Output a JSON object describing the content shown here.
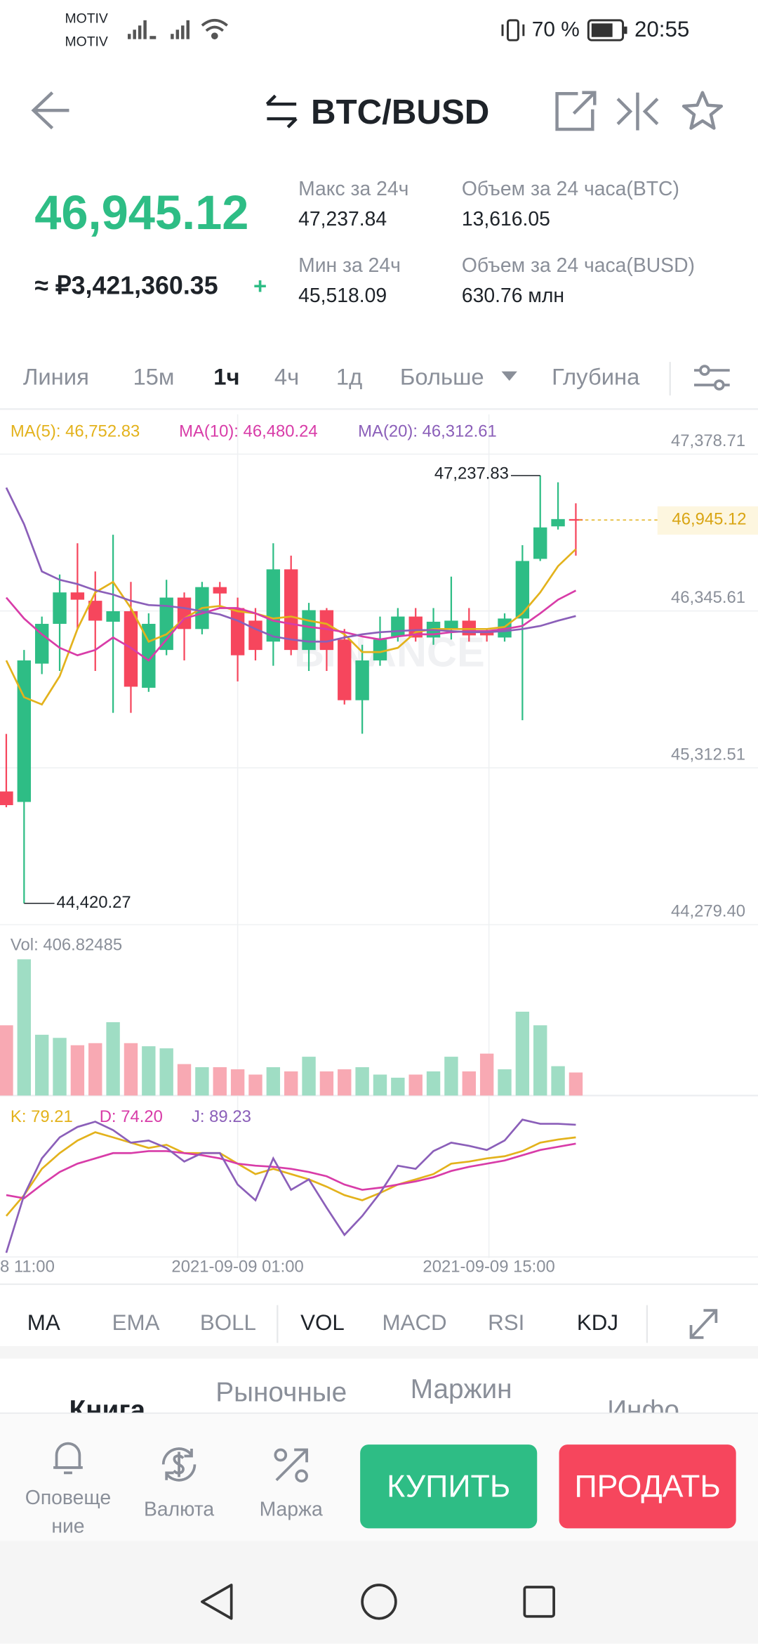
{
  "status_bar": {
    "carriers": [
      "MOTIV",
      "MOTIV"
    ],
    "battery": "70 %",
    "time": "20:55"
  },
  "header": {
    "pair": "BTC/BUSD"
  },
  "ticker": {
    "last_price": "46,945.12",
    "fiat_price": "≈ ₽3,421,360.35",
    "fiat_change": "+",
    "stats": [
      {
        "label": "Макс за 24ч",
        "value": "47,237.84"
      },
      {
        "label": "Объем за 24 часа(BTC)",
        "value": "13,616.05"
      },
      {
        "label": "Мин за 24ч",
        "value": "45,518.09"
      },
      {
        "label": "Объем за 24 часа(BUSD)",
        "value": "630.76 млн"
      }
    ]
  },
  "intervals": [
    "Линия",
    "15м",
    "1ч",
    "4ч",
    "1д",
    "Больше",
    "Глубина"
  ],
  "chart": {
    "type": "candlestick",
    "watermark": "BINANCE",
    "ylim": [
      44279.4,
      47378.71
    ],
    "yticks": [
      {
        "value": 47378.71,
        "label": "47,378.71"
      },
      {
        "value": 46345.61,
        "label": "46,345.61"
      },
      {
        "value": 45312.51,
        "label": "45,312.51"
      },
      {
        "value": 44279.4,
        "label": "44,279.40"
      }
    ],
    "x_labels": [
      "8 11:00",
      "2021-09-09 01:00",
      "2021-09-09 15:00"
    ],
    "high_label": "47,237.83",
    "low_label": "44,420.27",
    "last_label": "46,945.12",
    "up_color": "#2ebd85",
    "down_color": "#f6465d",
    "candles": {
      "open": [
        45157,
        45088,
        45999,
        46261,
        46468,
        46413,
        46275,
        46344,
        45840,
        46089,
        46434,
        46227,
        46503,
        46365,
        46282,
        46144,
        46620,
        46089,
        46351,
        46158,
        45758,
        46020,
        46178,
        46309,
        46171,
        46227,
        46282,
        46206,
        46171,
        46296,
        46689,
        46903,
        46951
      ],
      "high": [
        45536,
        46089,
        46309,
        46586,
        46792,
        46606,
        46848,
        46537,
        46330,
        46551,
        46468,
        46537,
        46537,
        46434,
        46365,
        46792,
        46710,
        46399,
        46365,
        46227,
        46123,
        46309,
        46365,
        46365,
        46365,
        46572,
        46365,
        46227,
        46330,
        46779,
        47237.83,
        47193,
        47055
      ],
      "low": [
        45053,
        44420.27,
        45930,
        45951,
        46227,
        45951,
        45675,
        45675,
        45813,
        46054,
        46020,
        46192,
        46365,
        45882,
        46020,
        45985,
        46054,
        45951,
        45951,
        45730,
        45537,
        45985,
        46144,
        46144,
        46123,
        46158,
        46144,
        46144,
        46144,
        45626,
        46675,
        46882,
        46710
      ],
      "close": [
        45067,
        46020,
        46261,
        46468,
        46420,
        46282,
        46344,
        45847,
        46261,
        46434,
        46227,
        46503,
        46461,
        46054,
        46089,
        46620,
        46089,
        46351,
        46089,
        45758,
        46020,
        46158,
        46309,
        46171,
        46275,
        46282,
        46185,
        46185,
        46296,
        46675,
        46896,
        46951,
        46945.12
      ]
    },
    "ma_series": [
      {
        "legend": "MA(5): 46,752.83",
        "color": "#e3b21c",
        "values": [
          46020,
          45778,
          45730,
          45916,
          46227,
          46468,
          46537,
          46365,
          46144,
          46192,
          46296,
          46365,
          46379,
          46344,
          46330,
          46296,
          46309,
          46282,
          46261,
          46192,
          46075,
          46075,
          46103,
          46206,
          46227,
          46227,
          46227,
          46227,
          46241,
          46330,
          46468,
          46641,
          46752.83
        ]
      },
      {
        "legend": "MA(10): 46,480.24",
        "color": "#d83ca8",
        "values": [
          46434,
          46296,
          46192,
          46103,
          46054,
          46089,
          46171,
          46103,
          46020,
          46158,
          46296,
          46330,
          46365,
          46365,
          46330,
          46282,
          46261,
          46241,
          46227,
          46206,
          46178,
          46158,
          46178,
          46192,
          46192,
          46206,
          46213,
          46213,
          46227,
          46247,
          46330,
          46420,
          46480.24
        ]
      },
      {
        "legend": "MA(20): 46,312.61",
        "color": "#8b5fb9",
        "values": [
          47158,
          46917,
          46606,
          46551,
          46523,
          46482,
          46454,
          46413,
          46385,
          46379,
          46365,
          46344,
          46323,
          46282,
          46227,
          46178,
          46158,
          46144,
          46144,
          46171,
          46192,
          46206,
          46213,
          46220,
          46220,
          46213,
          46206,
          46206,
          46213,
          46227,
          46247,
          46282,
          46312.61
        ]
      }
    ],
    "volume": {
      "legend": "Vol: 406.82485",
      "up_color": "#9fddc4",
      "down_color": "#f8a9b3",
      "values": [
        1240,
        2405,
        1073,
        1018,
        888,
        925,
        1295,
        925,
        870,
        833,
        555,
        500,
        500,
        463,
        370,
        500,
        426,
        685,
        426,
        463,
        500,
        370,
        315,
        370,
        426,
        685,
        426,
        740,
        463,
        1480,
        1240,
        518,
        406.82485
      ]
    },
    "kdj": [
      {
        "legend": "K: 79.21",
        "color": "#e3b21c",
        "values": [
          16.7,
          33.3,
          54.2,
          66.7,
          76.7,
          83.3,
          79.2,
          75.0,
          70.8,
          73.3,
          66.7,
          66.7,
          66.7,
          58.3,
          50.0,
          54.2,
          50.0,
          45.8,
          40.0,
          33.3,
          29.2,
          35.0,
          41.7,
          45.8,
          50.0,
          58.3,
          60.0,
          62.5,
          64.2,
          68.3,
          75.0,
          77.5,
          79.21
        ]
      },
      {
        "legend": "D: 74.20",
        "color": "#d83ca8",
        "values": [
          33.3,
          30.8,
          41.7,
          51.7,
          58.3,
          62.5,
          66.7,
          66.7,
          68.3,
          68.3,
          66.7,
          65.0,
          62.5,
          58.3,
          56.7,
          55.8,
          54.2,
          51.7,
          48.3,
          41.7,
          37.5,
          39.2,
          41.7,
          44.2,
          47.5,
          52.5,
          55.8,
          58.3,
          60.8,
          65.0,
          69.2,
          71.7,
          74.2
        ]
      },
      {
        "legend": "J: 89.23",
        "color": "#8b5fb9",
        "values": [
          -12.5,
          33.3,
          62.5,
          79.2,
          87.5,
          91.7,
          85.0,
          75.0,
          76.7,
          70.8,
          60.0,
          66.7,
          66.7,
          41.7,
          29.2,
          62.5,
          37.5,
          45.8,
          23.3,
          1.7,
          16.7,
          35.0,
          56.7,
          54.2,
          68.3,
          75.0,
          72.5,
          69.2,
          76.7,
          93.3,
          90.0,
          90.0,
          89.23
        ]
      }
    ]
  },
  "indicators": [
    "MA",
    "EMA",
    "BOLL",
    "VOL",
    "MACD",
    "RSI",
    "KDJ"
  ],
  "sections": [
    "Книга",
    "Рыночные",
    "Маржин",
    "Инфо"
  ],
  "bottom_bar": {
    "alert_lines": [
      "Оповеще",
      "ние"
    ],
    "currency": "Валюта",
    "margin": "Маржа",
    "buy": "КУПИТЬ",
    "sell": "ПРОДАТЬ"
  }
}
